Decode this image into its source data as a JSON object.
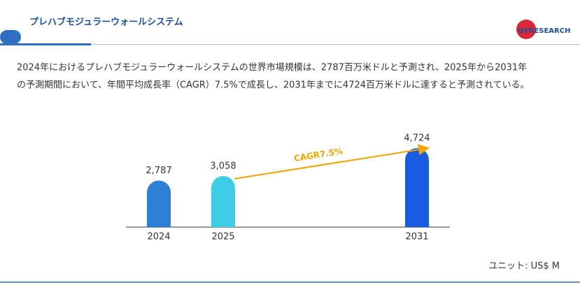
{
  "header": {
    "title": "プレハブモジュラーウォールシステム",
    "logo": "QYRESEARCH"
  },
  "description": [
    "2024年におけるプレハブモジュラーウォールシステムの世界市場規模は、2787百万米ドルと予測され、2025年から2031年",
    "の予測期間において、年間平均成長率（CAGR）7.5%で成長し、2031年までに4724百万米ドルに達すると予測されている。"
  ],
  "chart_data": {
    "type": "bar",
    "categories": [
      "2024",
      "2025",
      "2031"
    ],
    "values": [
      2787,
      3058,
      4724
    ],
    "value_labels": [
      "2,787",
      "3,058",
      "4,724"
    ],
    "colors": [
      "#2e7fd6",
      "#3ecde6",
      "#1a5ce0"
    ],
    "annotation": "CAGR7.5%",
    "annotation_color": "#f0a500",
    "unit": "ユニット: US$ M"
  }
}
